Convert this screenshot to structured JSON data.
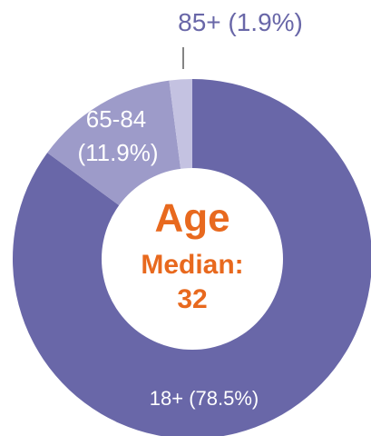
{
  "chart_data": {
    "type": "donut",
    "title": "Age",
    "median_label": "Median:",
    "median": 32,
    "categories": [
      "18+",
      "65-84",
      "85+"
    ],
    "values": [
      78.5,
      11.9,
      1.9
    ],
    "value_labels": [
      "(78.5%)",
      "(11.9%)",
      "(1.9%)"
    ],
    "colors": [
      "#6967a8",
      "#9d9bc9",
      "#c4c2e1"
    ],
    "center_color": "#e8691e"
  }
}
